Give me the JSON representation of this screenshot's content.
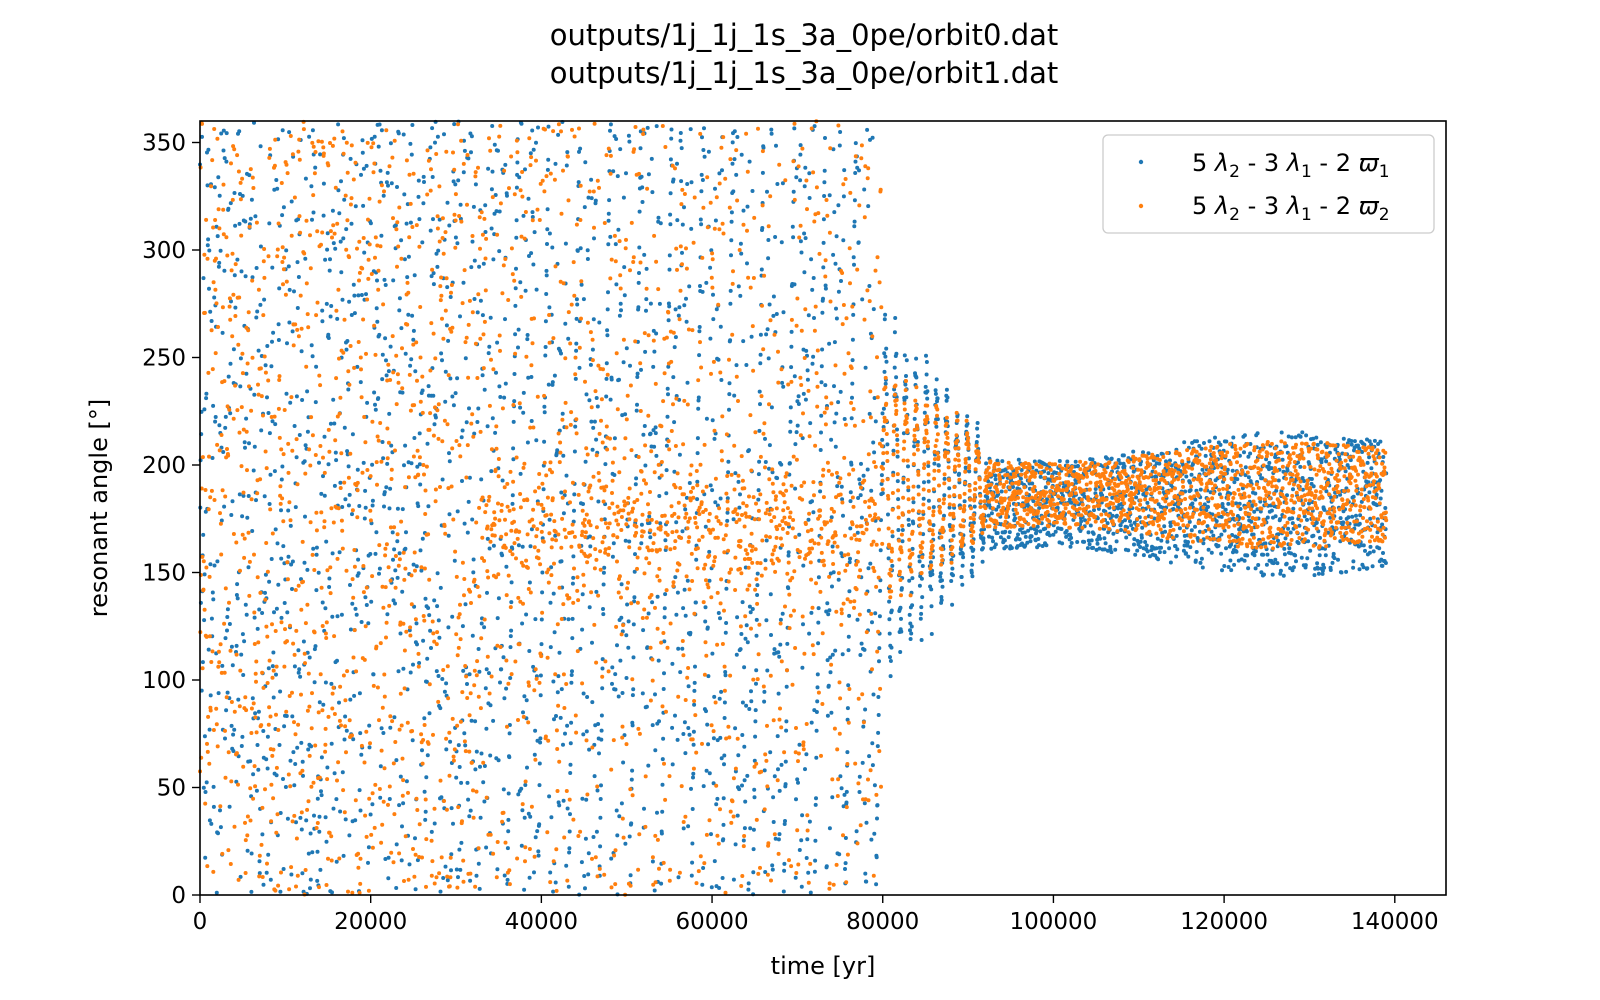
{
  "chart_data": {
    "type": "scatter",
    "title_lines": [
      "outputs/1j_1j_1s_3a_0pe/orbit0.dat",
      "outputs/1j_1j_1s_3a_0pe/orbit1.dat"
    ],
    "xlabel": "time [yr]",
    "ylabel": "resonant angle [°]",
    "xlim": [
      0,
      146000
    ],
    "ylim": [
      0,
      360
    ],
    "x_ticks": [
      0,
      20000,
      40000,
      60000,
      80000,
      100000,
      120000,
      140000
    ],
    "x_tick_labels": [
      "0",
      "20000",
      "40000",
      "60000",
      "80000",
      "100000",
      "120000",
      "140000"
    ],
    "y_ticks": [
      0,
      50,
      100,
      150,
      200,
      250,
      300,
      350
    ],
    "y_tick_labels": [
      "0",
      "50",
      "100",
      "150",
      "200",
      "250",
      "300",
      "350"
    ],
    "grid": false,
    "legend_position": "top-right",
    "series": [
      {
        "name": "5 λ2 - 3 λ1 - 2 ϖ1",
        "color": "#1f77b4",
        "x_range": [
          0,
          139000
        ],
        "regimes": [
          {
            "x": [
              0,
              80000
            ],
            "behavior": "circulating",
            "y_range": [
              0,
              360
            ]
          },
          {
            "x": [
              80000,
              92000
            ],
            "behavior": "damped libration",
            "center": 185,
            "amplitude_start": 95,
            "amplitude_end": 30
          },
          {
            "x": [
              92000,
              139000
            ],
            "behavior": "libration",
            "center": 182,
            "y_range": [
              145,
              212
            ]
          }
        ]
      },
      {
        "name": "5 λ2 - 3 λ1 - 2 ϖ2",
        "color": "#ff7f0e",
        "x_range": [
          0,
          139000
        ],
        "regimes": [
          {
            "x": [
              0,
              33000
            ],
            "behavior": "circulating",
            "y_range": [
              0,
              360
            ]
          },
          {
            "x": [
              33000,
              80000
            ],
            "behavior": "circulating, concentrated near 170",
            "y_range": [
              0,
              360
            ]
          },
          {
            "x": [
              80000,
              92000
            ],
            "behavior": "damped libration",
            "center": 190,
            "amplitude_start": 60,
            "amplitude_end": 25
          },
          {
            "x": [
              92000,
              139000
            ],
            "behavior": "libration",
            "center": 186,
            "y_range": [
              160,
              208
            ]
          }
        ]
      }
    ]
  }
}
